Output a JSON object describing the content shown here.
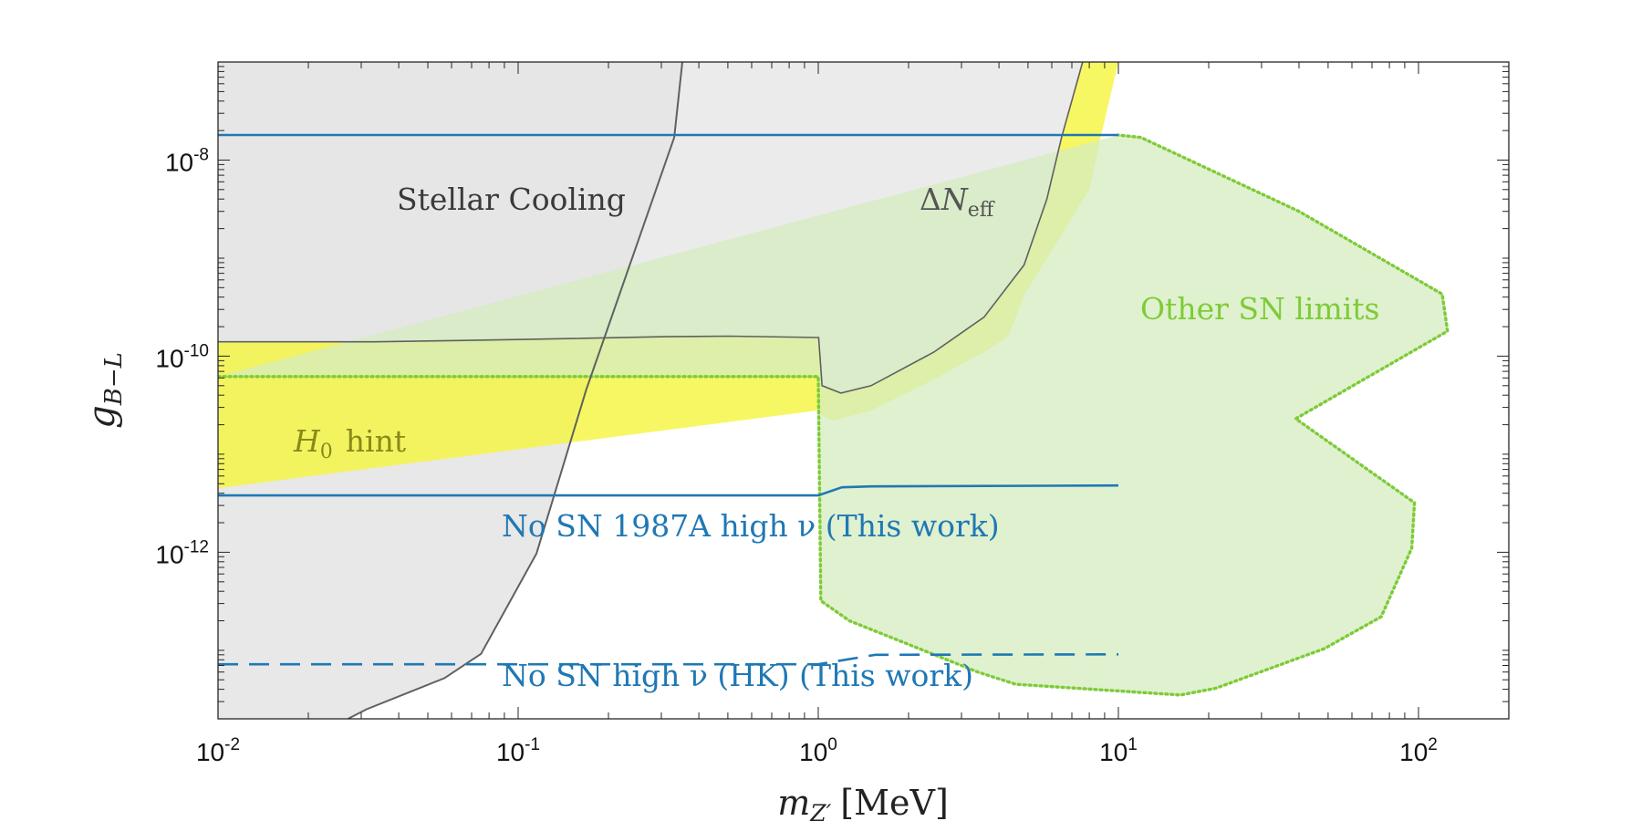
{
  "chart_data": {
    "type": "area",
    "title": "",
    "xlabel": {
      "base": "m",
      "sub": "Z′",
      "unit": "[MeV]"
    },
    "ylabel": {
      "base": "g",
      "sub": "B−L"
    },
    "xscale": "log",
    "yscale": "log",
    "xlim": [
      0.01,
      200
    ],
    "ylim": [
      2e-14,
      1e-07
    ],
    "x_ticks": [
      {
        "value": 0.01,
        "base": "10",
        "exp": "-2"
      },
      {
        "value": 0.1,
        "base": "10",
        "exp": "-1"
      },
      {
        "value": 1,
        "base": "10",
        "exp": "0"
      },
      {
        "value": 10,
        "base": "10",
        "exp": "1"
      },
      {
        "value": 100,
        "base": "10",
        "exp": "2"
      }
    ],
    "y_ticks": [
      {
        "value": 1e-12,
        "base": "10",
        "exp": "-12"
      },
      {
        "value": 1e-10,
        "base": "10",
        "exp": "-10"
      },
      {
        "value": 1e-08,
        "base": "10",
        "exp": "-8"
      }
    ],
    "colors": {
      "stellar_fill": "#e6e6e6",
      "stellar_line": "#606060",
      "dneff_fill": "#ebebeb",
      "h0_fill": "#f5f542",
      "other_sn_fill": "#d4ecbf",
      "other_sn_line": "#7ecb37",
      "limit_line": "#1f78b4"
    },
    "series": [
      {
        "name": "Stellar Cooling",
        "kind": "excluded-region",
        "points": [
          [
            0.0271,
            2e-14
          ],
          [
            0.0312,
            2.5e-14
          ],
          [
            0.0568,
            5.2e-14
          ],
          [
            0.0752,
            9.2e-14
          ],
          [
            0.1151,
            9.7e-13
          ],
          [
            0.1685,
            4.5e-11
          ],
          [
            0.3312,
            1.7e-08
          ],
          [
            0.3525,
            1e-07
          ]
        ]
      },
      {
        "name": "ΔN_eff",
        "kind": "excluded-region",
        "points": [
          [
            0.01,
            1.4e-10
          ],
          [
            0.0334,
            1.4e-10
          ],
          [
            0.1042,
            1.48e-10
          ],
          [
            0.3068,
            1.58e-10
          ],
          [
            0.5037,
            1.6e-10
          ],
          [
            1.003,
            1.55e-10
          ],
          [
            1.03,
            5e-11
          ],
          [
            1.19,
            4.2e-11
          ],
          [
            1.5,
            5e-11
          ],
          [
            2.428,
            1.1e-10
          ],
          [
            3.567,
            2.5e-10
          ],
          [
            4.85,
            8.5e-10
          ],
          [
            5.78,
            4e-09
          ],
          [
            6.466,
            1.7e-08
          ],
          [
            7.6,
            1e-07
          ]
        ]
      },
      {
        "name": "H0 hint",
        "kind": "hint-band",
        "lower": [
          [
            0.01,
            4.5e-12
          ],
          [
            1.0,
            2.8e-11
          ],
          [
            1.03,
            2.5e-11
          ],
          [
            1.12,
            2.2e-11
          ],
          [
            1.5,
            2.8e-11
          ],
          [
            2.428,
            5.8e-11
          ],
          [
            3.567,
            1.1e-10
          ],
          [
            4.3,
            1.6e-10
          ],
          [
            4.85,
            4.2e-10
          ],
          [
            6.0,
            1.2e-09
          ],
          [
            8.0,
            5e-09
          ],
          [
            8.8,
            1.9e-08
          ],
          [
            10.0,
            1e-07
          ]
        ],
        "upper": [
          [
            0.01,
            1.4e-10
          ],
          [
            0.0334,
            1.4e-10
          ],
          [
            0.1042,
            1.48e-10
          ],
          [
            0.3068,
            1.58e-10
          ],
          [
            0.5037,
            1.6e-10
          ],
          [
            1.003,
            1.55e-10
          ],
          [
            1.03,
            5e-11
          ],
          [
            1.19,
            4.2e-11
          ],
          [
            1.5,
            5e-11
          ],
          [
            2.428,
            1.1e-10
          ],
          [
            3.567,
            2.5e-10
          ],
          [
            4.85,
            8.5e-10
          ],
          [
            5.78,
            4e-09
          ],
          [
            6.466,
            1.7e-08
          ],
          [
            7.6,
            1e-07
          ]
        ]
      },
      {
        "name": "Other SN limits",
        "kind": "excluded-region",
        "points": [
          [
            0.01,
            6.2e-11
          ],
          [
            1.0,
            6.2e-11
          ],
          [
            1.02,
            3.2e-13
          ],
          [
            1.27,
            2e-13
          ],
          [
            3.4,
            6e-14
          ],
          [
            4.55,
            4.5e-14
          ],
          [
            16.1,
            3.5e-14
          ],
          [
            21.1,
            4.1e-14
          ],
          [
            48.6,
            1.04e-13
          ],
          [
            75.1,
            2.2e-13
          ],
          [
            95.0,
            1.1e-12
          ],
          [
            97.0,
            3.2e-12
          ],
          [
            39.0,
            2.3e-11
          ],
          [
            125.0,
            1.8e-10
          ],
          [
            120.0,
            4.3e-10
          ],
          [
            40.0,
            3e-09
          ],
          [
            11.9,
            1.7e-08
          ],
          [
            10.0,
            1.8e-08
          ]
        ]
      },
      {
        "name": "No SN 1987A high ν (This work)",
        "kind": "limit",
        "style": "solid",
        "points": [
          [
            0.01,
            3.8e-12
          ],
          [
            1.0,
            3.8e-12
          ],
          [
            1.2,
            4.6e-12
          ],
          [
            1.5,
            4.7e-12
          ],
          [
            10.0,
            4.8e-12
          ]
        ]
      },
      {
        "name": "No SN high ν (HK) (This work)",
        "kind": "limit",
        "style": "dashed",
        "points": [
          [
            0.01,
            7.2e-14
          ],
          [
            1.0,
            7.2e-14
          ],
          [
            1.55,
            9e-14
          ],
          [
            10.0,
            9.1e-14
          ]
        ]
      },
      {
        "name": "Upper boundary",
        "kind": "limit",
        "style": "solid",
        "points": [
          [
            0.01,
            1.8e-08
          ],
          [
            10.0,
            1.8e-08
          ]
        ]
      }
    ],
    "annotations": [
      {
        "id": "stellar",
        "text": "Stellar Cooling",
        "color": "#3a3a3a"
      },
      {
        "id": "dneff",
        "delta": "Δ",
        "base": "N",
        "sub": "eff",
        "color": "#555555"
      },
      {
        "id": "othersn",
        "text": "Other SN limits",
        "color": "#7ecb37"
      },
      {
        "id": "h0",
        "base": "H",
        "sub": "0",
        "text": "hint",
        "color": "#8a8a1a"
      },
      {
        "id": "sn1987",
        "text": "No SN 1987A high ν (This work)",
        "color": "#1f78b4"
      },
      {
        "id": "hk",
        "text": "No SN high ν (HK) (This work)",
        "color": "#1f78b4"
      }
    ]
  }
}
